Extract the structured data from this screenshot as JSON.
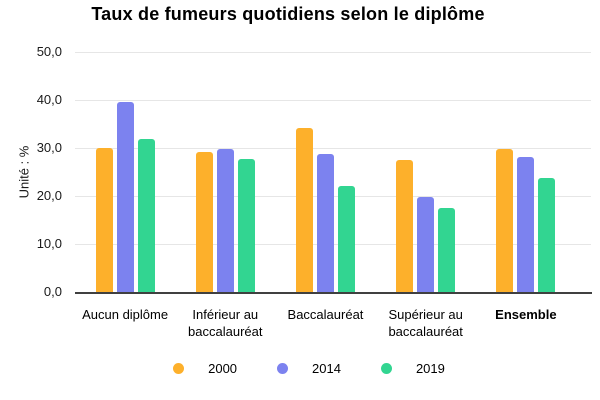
{
  "chart_data": {
    "type": "bar",
    "title": "Taux de fumeurs quotidiens selon le diplôme",
    "ylabel": "Unité : %",
    "xlabel": "",
    "ylim": [
      0,
      50
    ],
    "y_step": 10,
    "y_tick_labels": [
      "50,0",
      "40,0",
      "30,0",
      "20,0",
      "10,0",
      "0,0"
    ],
    "grid": true,
    "legend_position": "bottom",
    "categories": [
      "Aucun diplôme",
      "Inférieur au baccalauréat",
      "Baccalauréat",
      "Supérieur au baccalauréat",
      "Ensemble"
    ],
    "bold_categories": [
      false,
      false,
      false,
      false,
      true
    ],
    "series": [
      {
        "name": "2000",
        "color": "#FDB02B",
        "values": [
          30.0,
          29.2,
          34.1,
          27.6,
          29.8
        ]
      },
      {
        "name": "2014",
        "color": "#7C82EF",
        "values": [
          39.5,
          29.8,
          28.7,
          19.8,
          28.2
        ]
      },
      {
        "name": "2019",
        "color": "#32D591",
        "values": [
          31.9,
          27.8,
          22.1,
          17.5,
          23.8
        ]
      }
    ]
  },
  "colors": {
    "gridline": "#E6E6E6",
    "axis": "#404040",
    "text": "#000000"
  }
}
